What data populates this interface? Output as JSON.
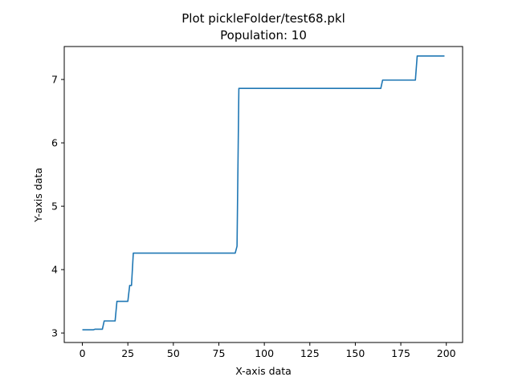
{
  "chart_data": {
    "type": "line",
    "title": "Plot pickleFolder/test68.pkl",
    "subtitle": "Population: 10",
    "xlabel": "X-axis data",
    "ylabel": "Y-axis data",
    "xlim": [
      -9.95,
      208.95
    ],
    "ylim": [
      2.85,
      7.52
    ],
    "x_ticks": [
      0,
      25,
      50,
      75,
      100,
      125,
      150,
      175,
      200
    ],
    "y_ticks": [
      3,
      4,
      5,
      6,
      7
    ],
    "grid": false,
    "legend": "none",
    "series": [
      {
        "color": "#1f77b4",
        "points": [
          [
            0,
            3.05
          ],
          [
            6,
            3.05
          ],
          [
            7,
            3.06
          ],
          [
            11,
            3.06
          ],
          [
            12,
            3.19
          ],
          [
            18,
            3.19
          ],
          [
            19,
            3.5
          ],
          [
            25,
            3.5
          ],
          [
            26,
            3.75
          ],
          [
            27,
            3.75
          ],
          [
            28,
            4.26
          ],
          [
            84,
            4.26
          ],
          [
            85,
            4.37
          ],
          [
            86,
            6.86
          ],
          [
            164,
            6.86
          ],
          [
            165,
            6.99
          ],
          [
            183,
            6.99
          ],
          [
            184,
            7.37
          ],
          [
            199,
            7.37
          ]
        ]
      }
    ]
  }
}
